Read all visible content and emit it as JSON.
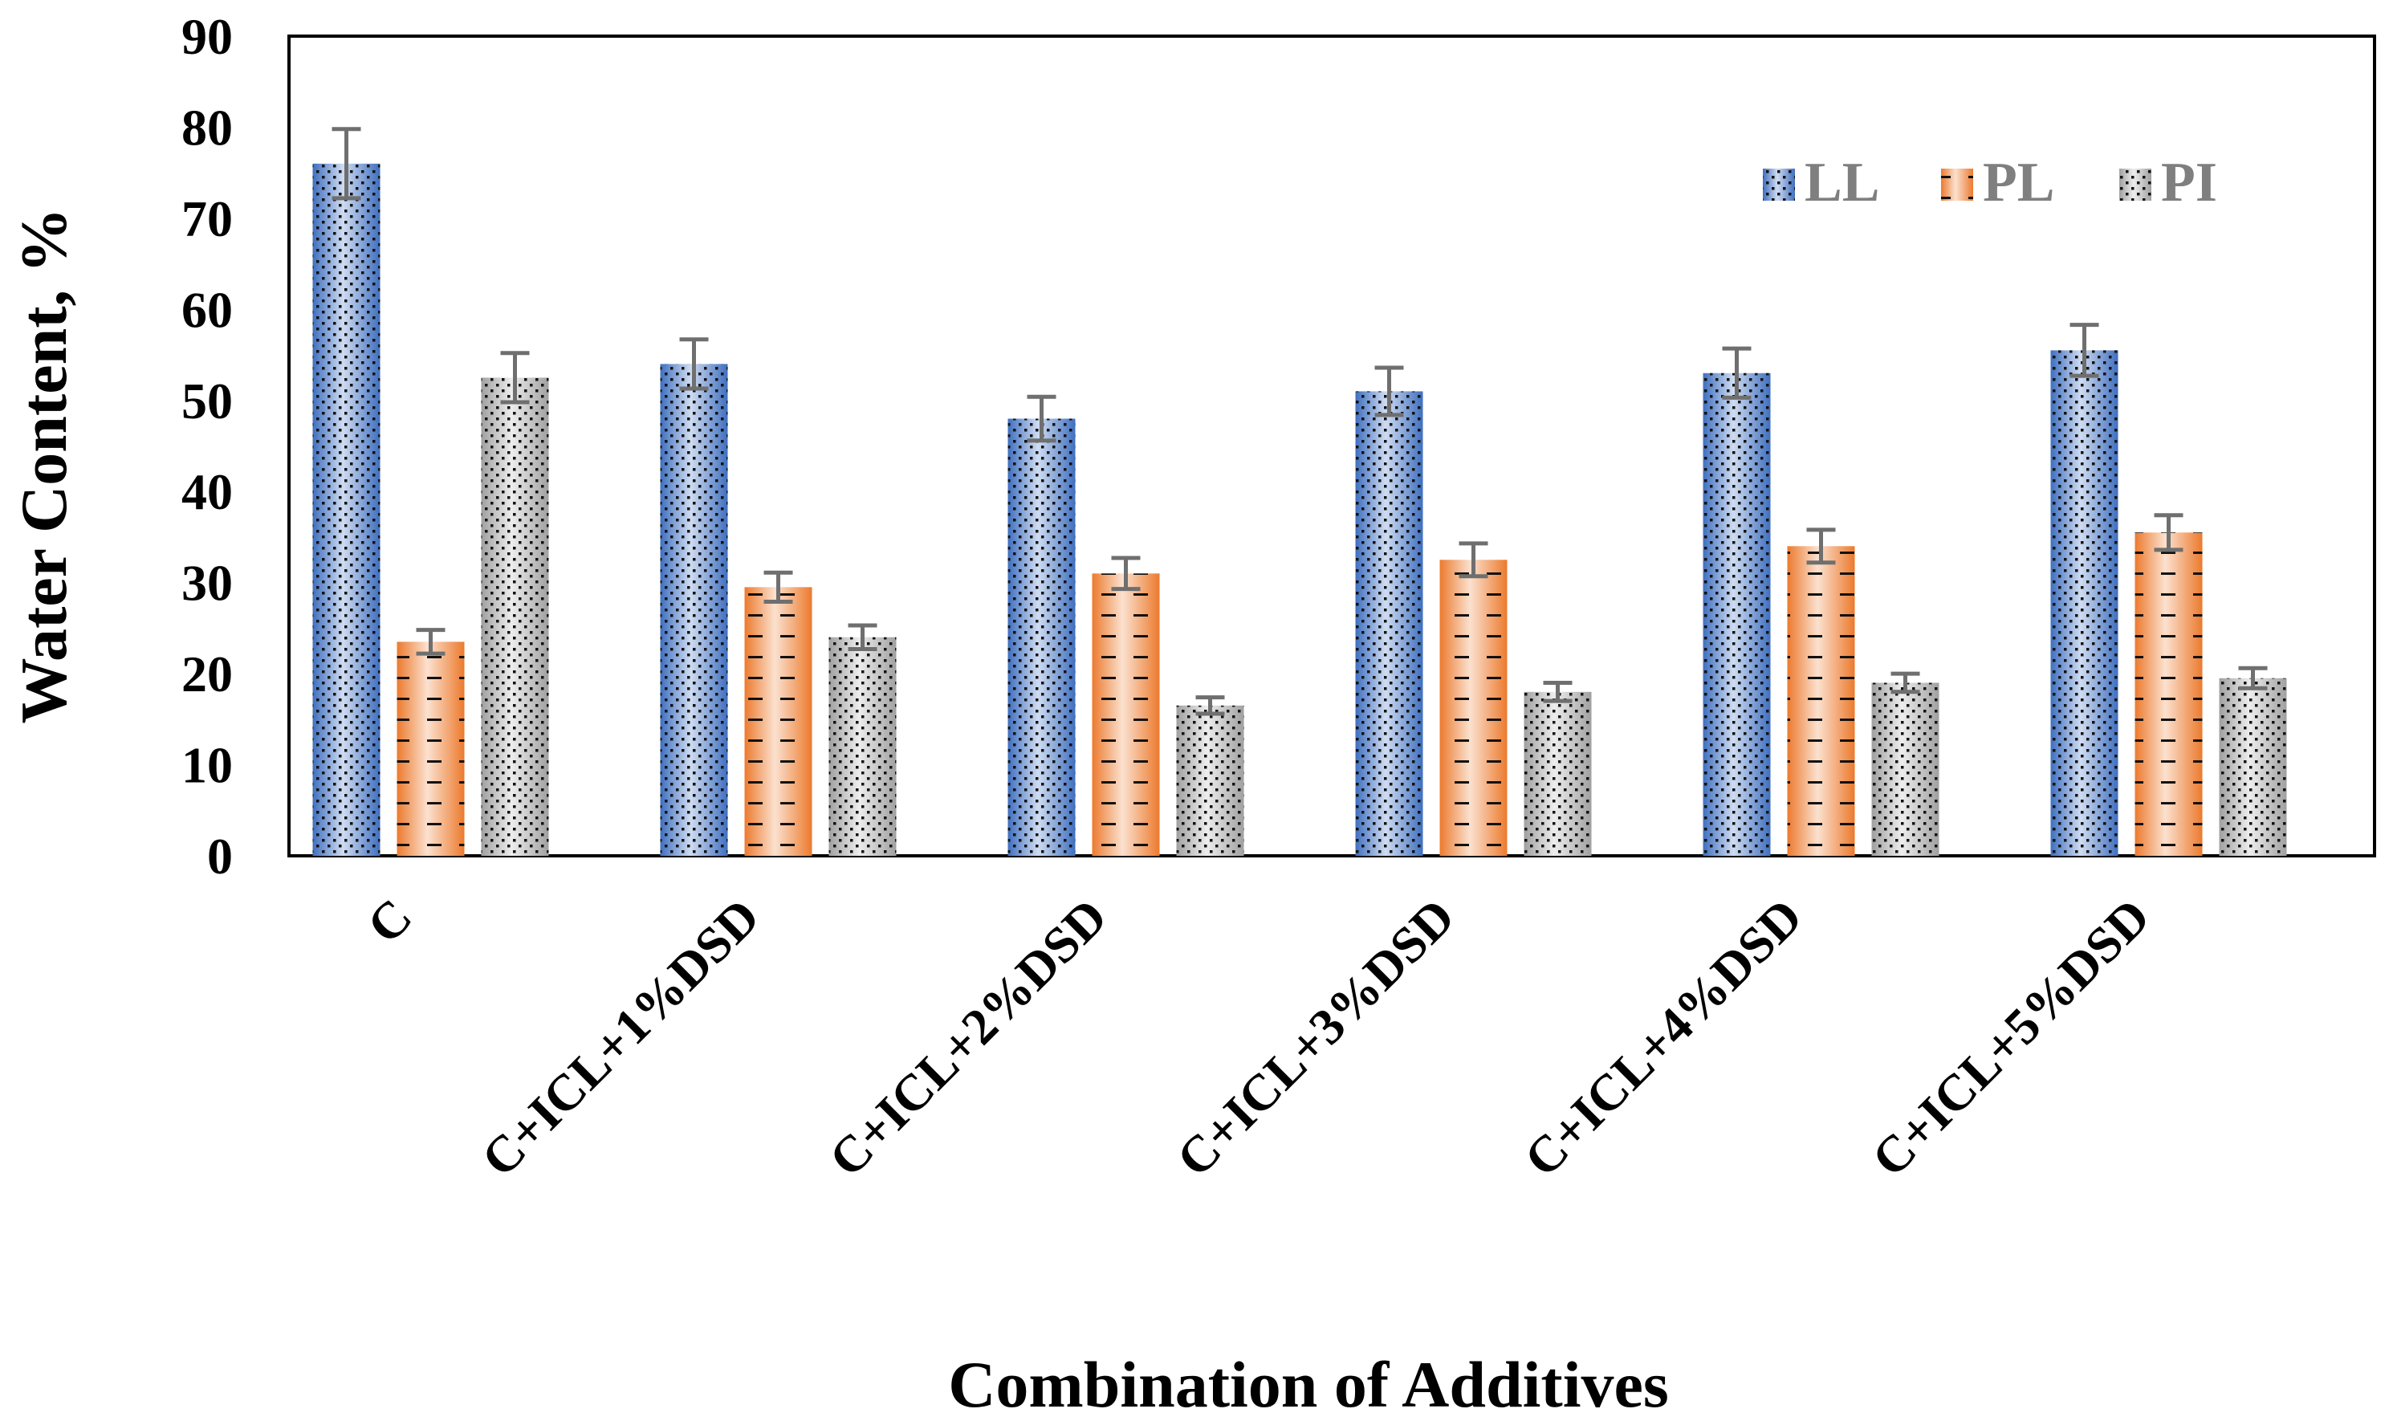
{
  "chart_data": {
    "type": "bar",
    "xlabel": "Combination of Additives",
    "ylabel": "Water Content, %",
    "ylim": [
      0,
      90
    ],
    "yticks": [
      0,
      10,
      20,
      30,
      40,
      50,
      60,
      70,
      80,
      90
    ],
    "grid": false,
    "legend_position": "top-right",
    "categories": [
      "C",
      "C+ICL+1%DSD",
      "C+ICL+2%DSD",
      "C+ICL+3%DSD",
      "C+ICL+4%DSD",
      "C+ICL+5%DSD"
    ],
    "series": [
      {
        "name": "LL",
        "color": "#4472c4",
        "pattern": "dots",
        "values": [
          76,
          54,
          48,
          51,
          53,
          55.5
        ],
        "errors": [
          3.8,
          2.7,
          2.4,
          2.6,
          2.7,
          2.8
        ]
      },
      {
        "name": "PL",
        "color": "#ed7d31",
        "pattern": "dashes",
        "values": [
          23.5,
          29.5,
          31,
          32.5,
          34,
          35.5
        ],
        "errors": [
          1.3,
          1.6,
          1.7,
          1.8,
          1.8,
          1.9
        ]
      },
      {
        "name": "PI",
        "color": "#a5a5a5",
        "pattern": "dots",
        "values": [
          52.5,
          24,
          16.5,
          18,
          19,
          19.5
        ],
        "errors": [
          2.7,
          1.3,
          0.9,
          1.0,
          1.0,
          1.1
        ]
      }
    ]
  }
}
